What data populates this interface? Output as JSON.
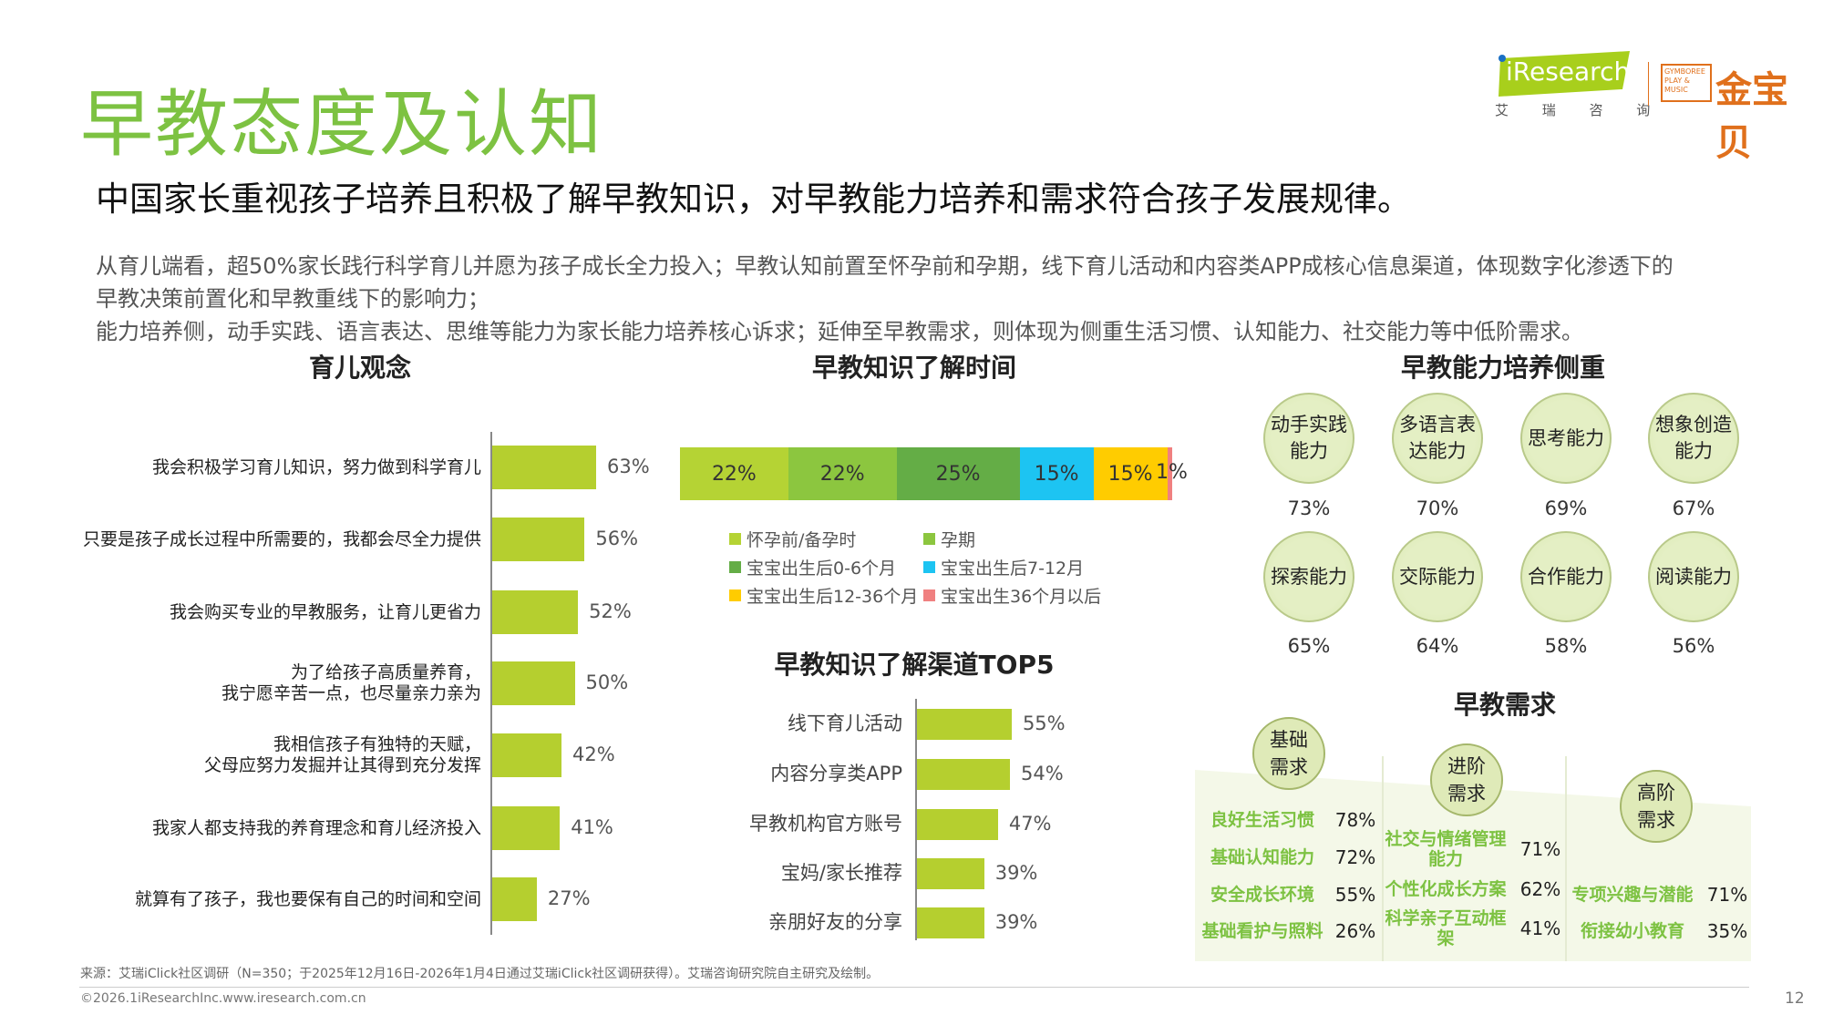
{
  "header": {
    "title": "早教态度及认知",
    "subtitle": "中国家长重视孩子培养且积极了解早教知识，对早教能力培养和需求符合孩子发展规律。",
    "body": [
      "从育儿端看，超50%家长践行科学育儿并愿为孩子成长全力投入；早教认知前置至怀孕前和孕期，线下育儿活动和内容类APP成核心信息渠道，体现数字化渗透下的",
      "早教决策前置化和早教重线下的影响力；",
      "能力培养侧，动手实践、语言表达、思维等能力为家长能力培养核心诉求；延伸至早教需求，则体现为侧重生活习惯、认知能力、社交能力等中低阶需求。"
    ]
  },
  "logos": {
    "iresearch": "iResearch",
    "iresearch_cn": "艾 瑞 咨 询",
    "gymboree": "GYMBOREE PLAY & MUSIC",
    "jinbaobei": "金宝贝"
  },
  "colors": {
    "accent": "#7dc242",
    "bar": "#b5cf2f"
  },
  "chart_data": [
    {
      "type": "bar",
      "orientation": "horizontal",
      "title": "育儿观念",
      "categories": [
        "我会积极学习育儿知识，努力做到科学育儿",
        "只要是孩子成长过程中所需要的，我都会尽全力提供",
        "我会购买专业的早教服务，让育儿更省力",
        "为了给孩子高质量养育，\n我宁愿辛苦一点，也尽量亲力亲为",
        "我相信孩子有独特的天赋，\n父母应努力发掘并让其得到充分发挥",
        "我家人都支持我的养育理念和育儿经济投入",
        "就算有了孩子，我也要保有自己的时间和空间"
      ],
      "values": [
        63,
        56,
        52,
        50,
        42,
        41,
        27
      ],
      "labels": [
        "63%",
        "56%",
        "52%",
        "50%",
        "42%",
        "41%",
        "27%"
      ]
    },
    {
      "type": "bar",
      "orientation": "stacked-100",
      "title": "早教知识了解时间",
      "series": [
        {
          "name": "怀孕前/备孕时",
          "value": 22,
          "label": "22%",
          "color": "#b5d334"
        },
        {
          "name": "孕期",
          "value": 22,
          "label": "22%",
          "color": "#8cc63f"
        },
        {
          "name": "宝宝出生后0-6个月",
          "value": 25,
          "label": "25%",
          "color": "#64ad46"
        },
        {
          "name": "宝宝出生后7-12月",
          "value": 15,
          "label": "15%",
          "color": "#1dc4f2"
        },
        {
          "name": "宝宝出生后12-36个月",
          "value": 15,
          "label": "15%",
          "color": "#ffcc00"
        },
        {
          "name": "宝宝出生36个月以后",
          "value": 1,
          "label": "1%",
          "color": "#f08080"
        }
      ],
      "legend": "bottom"
    },
    {
      "type": "bar",
      "orientation": "horizontal",
      "title": "早教知识了解渠道TOP5",
      "categories": [
        "线下育儿活动",
        "内容分享类APP",
        "早教机构官方账号",
        "宝妈/家长推荐",
        "亲朋好友的分享"
      ],
      "values": [
        55,
        54,
        47,
        39,
        39
      ],
      "labels": [
        "55%",
        "54%",
        "47%",
        "39%",
        "39%"
      ]
    }
  ],
  "abilities": {
    "title": "早教能力培养侧重",
    "items": [
      {
        "name": "动手实践\n能力",
        "pct": "73%"
      },
      {
        "name": "多语言表\n达能力",
        "pct": "70%"
      },
      {
        "name": "思考能力",
        "pct": "69%"
      },
      {
        "name": "想象创造\n能力",
        "pct": "67%"
      },
      {
        "name": "探索能力",
        "pct": "65%"
      },
      {
        "name": "交际能力",
        "pct": "64%"
      },
      {
        "name": "合作能力",
        "pct": "58%"
      },
      {
        "name": "阅读能力",
        "pct": "56%"
      }
    ]
  },
  "needs": {
    "title": "早教需求",
    "groups": [
      {
        "name": "基础\n需求",
        "items": [
          {
            "name": "良好生活习惯",
            "pct": "78%"
          },
          {
            "name": "基础认知能力",
            "pct": "72%"
          },
          {
            "name": "安全成长环境",
            "pct": "55%"
          },
          {
            "name": "基础看护与照料",
            "pct": "26%"
          }
        ]
      },
      {
        "name": "进阶\n需求",
        "items": [
          {
            "name": "社交与情绪管理\n能力",
            "pct": "71%"
          },
          {
            "name": "个性化成长方案",
            "pct": "62%"
          },
          {
            "name": "科学亲子互动框\n架",
            "pct": "41%"
          }
        ]
      },
      {
        "name": "高阶\n需求",
        "items": [
          {
            "name": "专项兴趣与潜能",
            "pct": "71%"
          },
          {
            "name": "衔接幼小教育",
            "pct": "35%"
          }
        ]
      }
    ]
  },
  "footer": {
    "source": "来源：艾瑞iClick社区调研（N=350；于2025年12月16日-2026年1月4日通过艾瑞iClick社区调研获得）。艾瑞咨询研究院自主研究及绘制。",
    "copyright": "©2026.1iResearchInc.www.iresearch.com.cn",
    "page": "12"
  }
}
